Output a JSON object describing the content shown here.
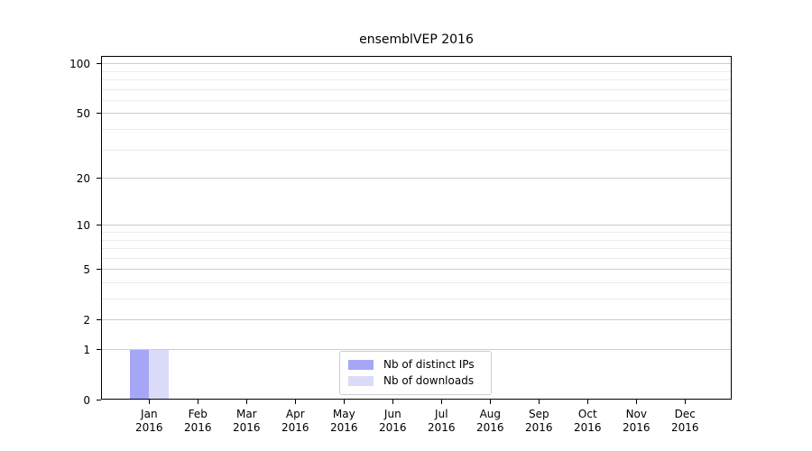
{
  "chart_data": {
    "type": "bar",
    "title": "ensemblVEP 2016",
    "categories": [
      "Jan",
      "Feb",
      "Mar",
      "Apr",
      "May",
      "Jun",
      "Jul",
      "Aug",
      "Sep",
      "Oct",
      "Nov",
      "Dec"
    ],
    "category_sublabel": "2016",
    "series": [
      {
        "name": "Nb of distinct IPs",
        "color": "#a6a6f7",
        "values": [
          1,
          0,
          0,
          0,
          0,
          0,
          0,
          0,
          0,
          0,
          0,
          0
        ]
      },
      {
        "name": "Nb of downloads",
        "color": "#dbdbf9",
        "values": [
          1,
          0,
          0,
          0,
          0,
          0,
          0,
          0,
          0,
          0,
          0,
          0
        ]
      }
    ],
    "yscale": "log1p",
    "ylim": [
      0,
      110
    ],
    "y_major_ticks": [
      0,
      1,
      2,
      5,
      10,
      20,
      50,
      100
    ],
    "y_minor_gridlines": [
      3,
      4,
      6,
      7,
      8,
      9,
      30,
      40,
      60,
      70,
      80,
      90
    ],
    "grid": "horizontal",
    "legend_position": "lower center"
  },
  "colors": {
    "bar_distinct_ips": "#a6a6f7",
    "bar_downloads": "#dbdbf9",
    "major_grid": "#cccccc",
    "minor_grid": "#ebebeb",
    "axis": "#000000",
    "text": "#000000",
    "legend_border": "#cccccc",
    "background": "#ffffff"
  }
}
